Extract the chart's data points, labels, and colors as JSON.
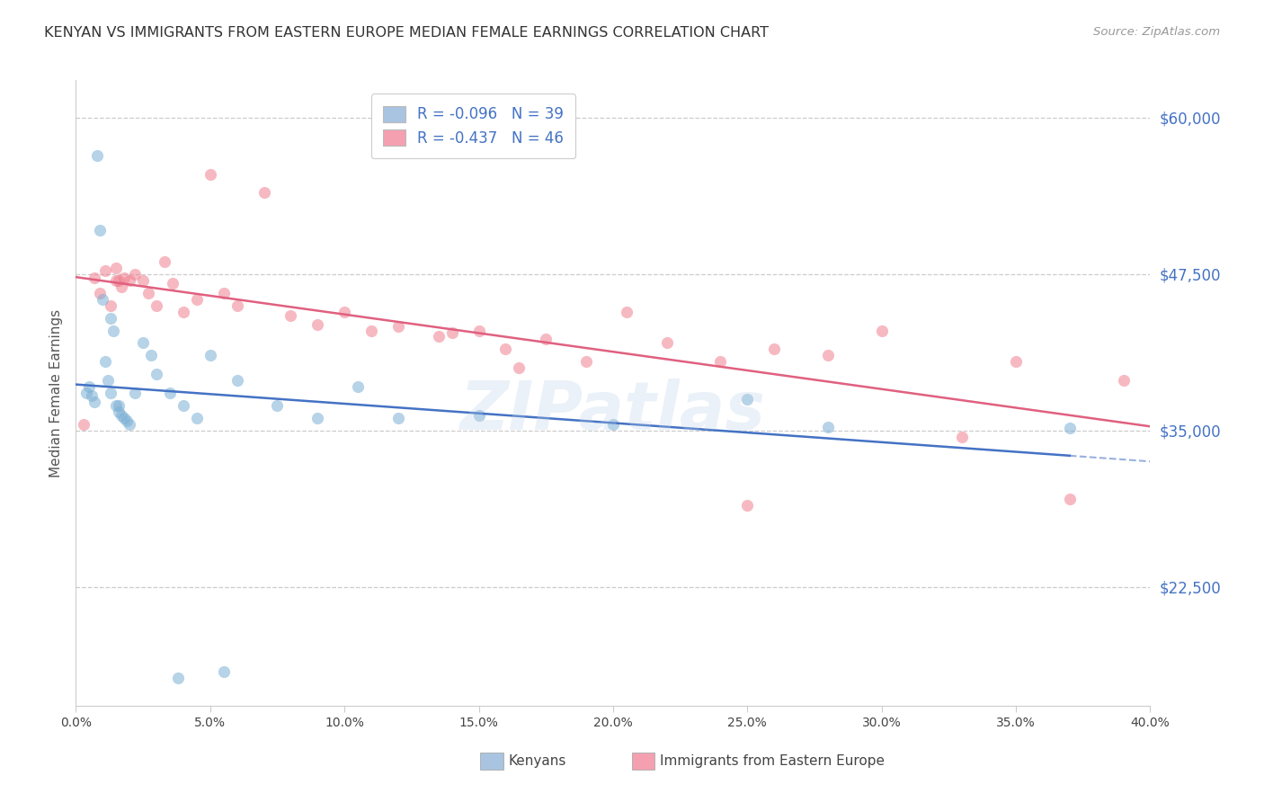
{
  "title": "KENYAN VS IMMIGRANTS FROM EASTERN EUROPE MEDIAN FEMALE EARNINGS CORRELATION CHART",
  "source": "Source: ZipAtlas.com",
  "ylabel": "Median Female Earnings",
  "y_ticks": [
    22500,
    35000,
    47500,
    60000
  ],
  "y_tick_labels": [
    "$22,500",
    "$35,000",
    "$47,500",
    "$60,000"
  ],
  "x_min": 0.0,
  "x_max": 0.4,
  "y_min": 13000,
  "y_max": 63000,
  "watermark": "ZIPatlas",
  "blue_dot_color": "#7bafd4",
  "pink_dot_color": "#f08090",
  "blue_line_color": "#4472c4",
  "pink_line_color": "#e06080",
  "dot_alpha": 0.55,
  "dot_size": 90,
  "kenyans_x": [
    0.004,
    0.005,
    0.006,
    0.007,
    0.008,
    0.009,
    0.01,
    0.011,
    0.012,
    0.013,
    0.013,
    0.014,
    0.015,
    0.016,
    0.017,
    0.018,
    0.019,
    0.02,
    0.022,
    0.025,
    0.028,
    0.03,
    0.035,
    0.04,
    0.045,
    0.05,
    0.06,
    0.075,
    0.09,
    0.105,
    0.12,
    0.15,
    0.2,
    0.25,
    0.28,
    0.37,
    0.038,
    0.055,
    0.016
  ],
  "kenyans_y": [
    38000,
    38500,
    37800,
    37300,
    57000,
    51000,
    45500,
    40500,
    39000,
    38000,
    44000,
    43000,
    37000,
    36500,
    36200,
    36000,
    35800,
    35500,
    38000,
    42000,
    41000,
    39500,
    38000,
    37000,
    36000,
    41000,
    39000,
    37000,
    36000,
    38500,
    36000,
    36200,
    35500,
    37500,
    35300,
    35200,
    15200,
    15700,
    37000
  ],
  "eastern_europe_x": [
    0.003,
    0.007,
    0.009,
    0.011,
    0.013,
    0.015,
    0.016,
    0.017,
    0.018,
    0.02,
    0.022,
    0.025,
    0.027,
    0.03,
    0.033,
    0.036,
    0.04,
    0.045,
    0.05,
    0.055,
    0.06,
    0.07,
    0.08,
    0.09,
    0.1,
    0.11,
    0.12,
    0.135,
    0.15,
    0.16,
    0.175,
    0.19,
    0.205,
    0.22,
    0.24,
    0.26,
    0.28,
    0.3,
    0.33,
    0.35,
    0.37,
    0.39,
    0.14,
    0.165,
    0.25,
    0.015
  ],
  "eastern_europe_y": [
    35500,
    47200,
    46000,
    47800,
    45000,
    48000,
    47000,
    46500,
    47200,
    47000,
    47500,
    47000,
    46000,
    45000,
    48500,
    46800,
    44500,
    45500,
    55500,
    46000,
    45000,
    54000,
    44200,
    43500,
    44500,
    43000,
    43300,
    42500,
    43000,
    41500,
    42300,
    40500,
    44500,
    42000,
    40500,
    41500,
    41000,
    43000,
    34500,
    40500,
    29500,
    39000,
    42800,
    40000,
    29000,
    47000
  ],
  "grid_color": "#cccccc",
  "background_color": "#ffffff",
  "title_color": "#333333",
  "axis_label_color": "#4472c4",
  "source_color": "#999999",
  "legend_label_blue": "R = -0.096   N = 39",
  "legend_label_pink": "R = -0.437   N = 46",
  "legend_color_blue": "#a8c4e0",
  "legend_color_pink": "#f4a0b0",
  "bottom_legend_label1": "Kenyans",
  "bottom_legend_label2": "Immigrants from Eastern Europe"
}
